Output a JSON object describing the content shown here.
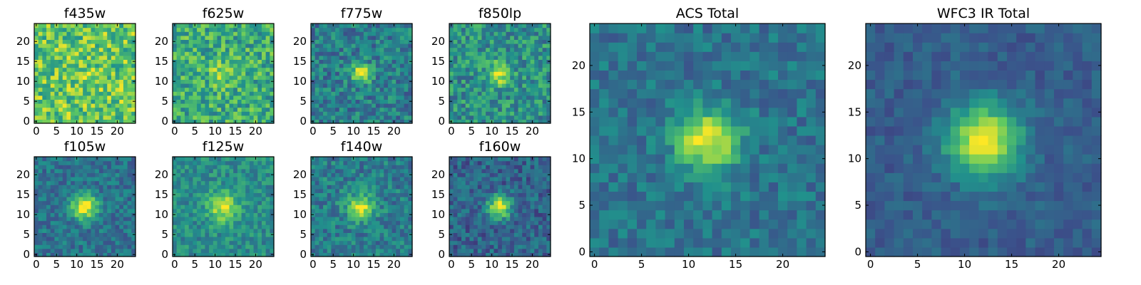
{
  "figure": {
    "colormap": "viridis",
    "colormap_stops": [
      "#440154",
      "#3b528b",
      "#21918c",
      "#5ec962",
      "#fde725"
    ],
    "frame_color": "#000000",
    "background": "#ffffff"
  },
  "chart_data": [
    {
      "type": "heatmap",
      "title": "f435w",
      "nx": 25,
      "ny": 25,
      "xlim": [
        0,
        24
      ],
      "ylim": [
        0,
        24
      ],
      "xticks": [
        0,
        5,
        10,
        15,
        20
      ],
      "yticks": [
        0,
        5,
        10,
        15,
        20
      ],
      "source": {
        "peak_x": 12,
        "peak_y": 12,
        "amplitude": 0.05,
        "sigma": 3.0,
        "background": 0.74,
        "noise": 0.24,
        "seed": 11
      }
    },
    {
      "type": "heatmap",
      "title": "f625w",
      "nx": 25,
      "ny": 25,
      "xlim": [
        0,
        24
      ],
      "ylim": [
        0,
        24
      ],
      "xticks": [
        0,
        5,
        10,
        15,
        20
      ],
      "yticks": [
        0,
        5,
        10,
        15,
        20
      ],
      "source": {
        "peak_x": 12,
        "peak_y": 12,
        "amplitude": 0.22,
        "sigma": 2.2,
        "background": 0.62,
        "noise": 0.22,
        "seed": 23
      }
    },
    {
      "type": "heatmap",
      "title": "f775w",
      "nx": 25,
      "ny": 25,
      "xlim": [
        0,
        24
      ],
      "ylim": [
        0,
        24
      ],
      "xticks": [
        0,
        5,
        10,
        15,
        20
      ],
      "yticks": [
        0,
        5,
        10,
        15,
        20
      ],
      "source": {
        "peak_x": 12,
        "peak_y": 12,
        "amplitude": 0.55,
        "sigma": 1.7,
        "background": 0.42,
        "noise": 0.18,
        "seed": 37
      }
    },
    {
      "type": "heatmap",
      "title": "f850lp",
      "nx": 25,
      "ny": 25,
      "xlim": [
        0,
        24
      ],
      "ylim": [
        0,
        24
      ],
      "xticks": [
        0,
        5,
        10,
        15,
        20
      ],
      "yticks": [
        0,
        5,
        10,
        15,
        20
      ],
      "source": {
        "peak_x": 12,
        "peak_y": 12,
        "amplitude": 0.45,
        "sigma": 1.9,
        "background": 0.5,
        "noise": 0.2,
        "seed": 41
      }
    },
    {
      "type": "heatmap",
      "title": "f105w",
      "nx": 25,
      "ny": 25,
      "xlim": [
        0,
        24
      ],
      "ylim": [
        0,
        24
      ],
      "xticks": [
        0,
        5,
        10,
        15,
        20
      ],
      "yticks": [
        0,
        5,
        10,
        15,
        20
      ],
      "source": {
        "peak_x": 12,
        "peak_y": 12,
        "amplitude": 0.6,
        "sigma": 2.3,
        "background": 0.38,
        "noise": 0.14,
        "seed": 53
      }
    },
    {
      "type": "heatmap",
      "title": "f125w",
      "nx": 25,
      "ny": 25,
      "xlim": [
        0,
        24
      ],
      "ylim": [
        0,
        24
      ],
      "xticks": [
        0,
        5,
        10,
        15,
        20
      ],
      "yticks": [
        0,
        5,
        10,
        15,
        20
      ],
      "source": {
        "peak_x": 12,
        "peak_y": 12,
        "amplitude": 0.45,
        "sigma": 2.6,
        "background": 0.48,
        "noise": 0.14,
        "seed": 61
      }
    },
    {
      "type": "heatmap",
      "title": "f140w",
      "nx": 25,
      "ny": 25,
      "xlim": [
        0,
        24
      ],
      "ylim": [
        0,
        24
      ],
      "xticks": [
        0,
        5,
        10,
        15,
        20
      ],
      "yticks": [
        0,
        5,
        10,
        15,
        20
      ],
      "source": {
        "peak_x": 12,
        "peak_y": 12,
        "amplitude": 0.5,
        "sigma": 2.2,
        "background": 0.42,
        "noise": 0.16,
        "seed": 71
      }
    },
    {
      "type": "heatmap",
      "title": "f160w",
      "nx": 25,
      "ny": 25,
      "xlim": [
        0,
        24
      ],
      "ylim": [
        0,
        24
      ],
      "xticks": [
        0,
        5,
        10,
        15,
        20
      ],
      "yticks": [
        0,
        5,
        10,
        15,
        20
      ],
      "source": {
        "peak_x": 12,
        "peak_y": 12,
        "amplitude": 0.65,
        "sigma": 2.0,
        "background": 0.32,
        "noise": 0.15,
        "seed": 83
      }
    },
    {
      "type": "heatmap",
      "title": "ACS Total",
      "nx": 25,
      "ny": 25,
      "xlim": [
        0,
        24
      ],
      "ylim": [
        0,
        24
      ],
      "xticks": [
        0,
        5,
        10,
        15,
        20
      ],
      "yticks": [
        0,
        5,
        10,
        15,
        20
      ],
      "source": {
        "peak_x": 12,
        "peak_y": 12,
        "amplitude": 0.6,
        "sigma": 2.3,
        "background": 0.38,
        "noise": 0.12,
        "seed": 97
      }
    },
    {
      "type": "heatmap",
      "title": "WFC3 IR Total",
      "nx": 25,
      "ny": 25,
      "xlim": [
        0,
        24
      ],
      "ylim": [
        0,
        24
      ],
      "xticks": [
        0,
        5,
        10,
        15,
        20
      ],
      "yticks": [
        0,
        5,
        10,
        15,
        20
      ],
      "source": {
        "peak_x": 12,
        "peak_y": 12,
        "amplitude": 0.68,
        "sigma": 2.7,
        "background": 0.3,
        "noise": 0.08,
        "seed": 101
      }
    }
  ]
}
